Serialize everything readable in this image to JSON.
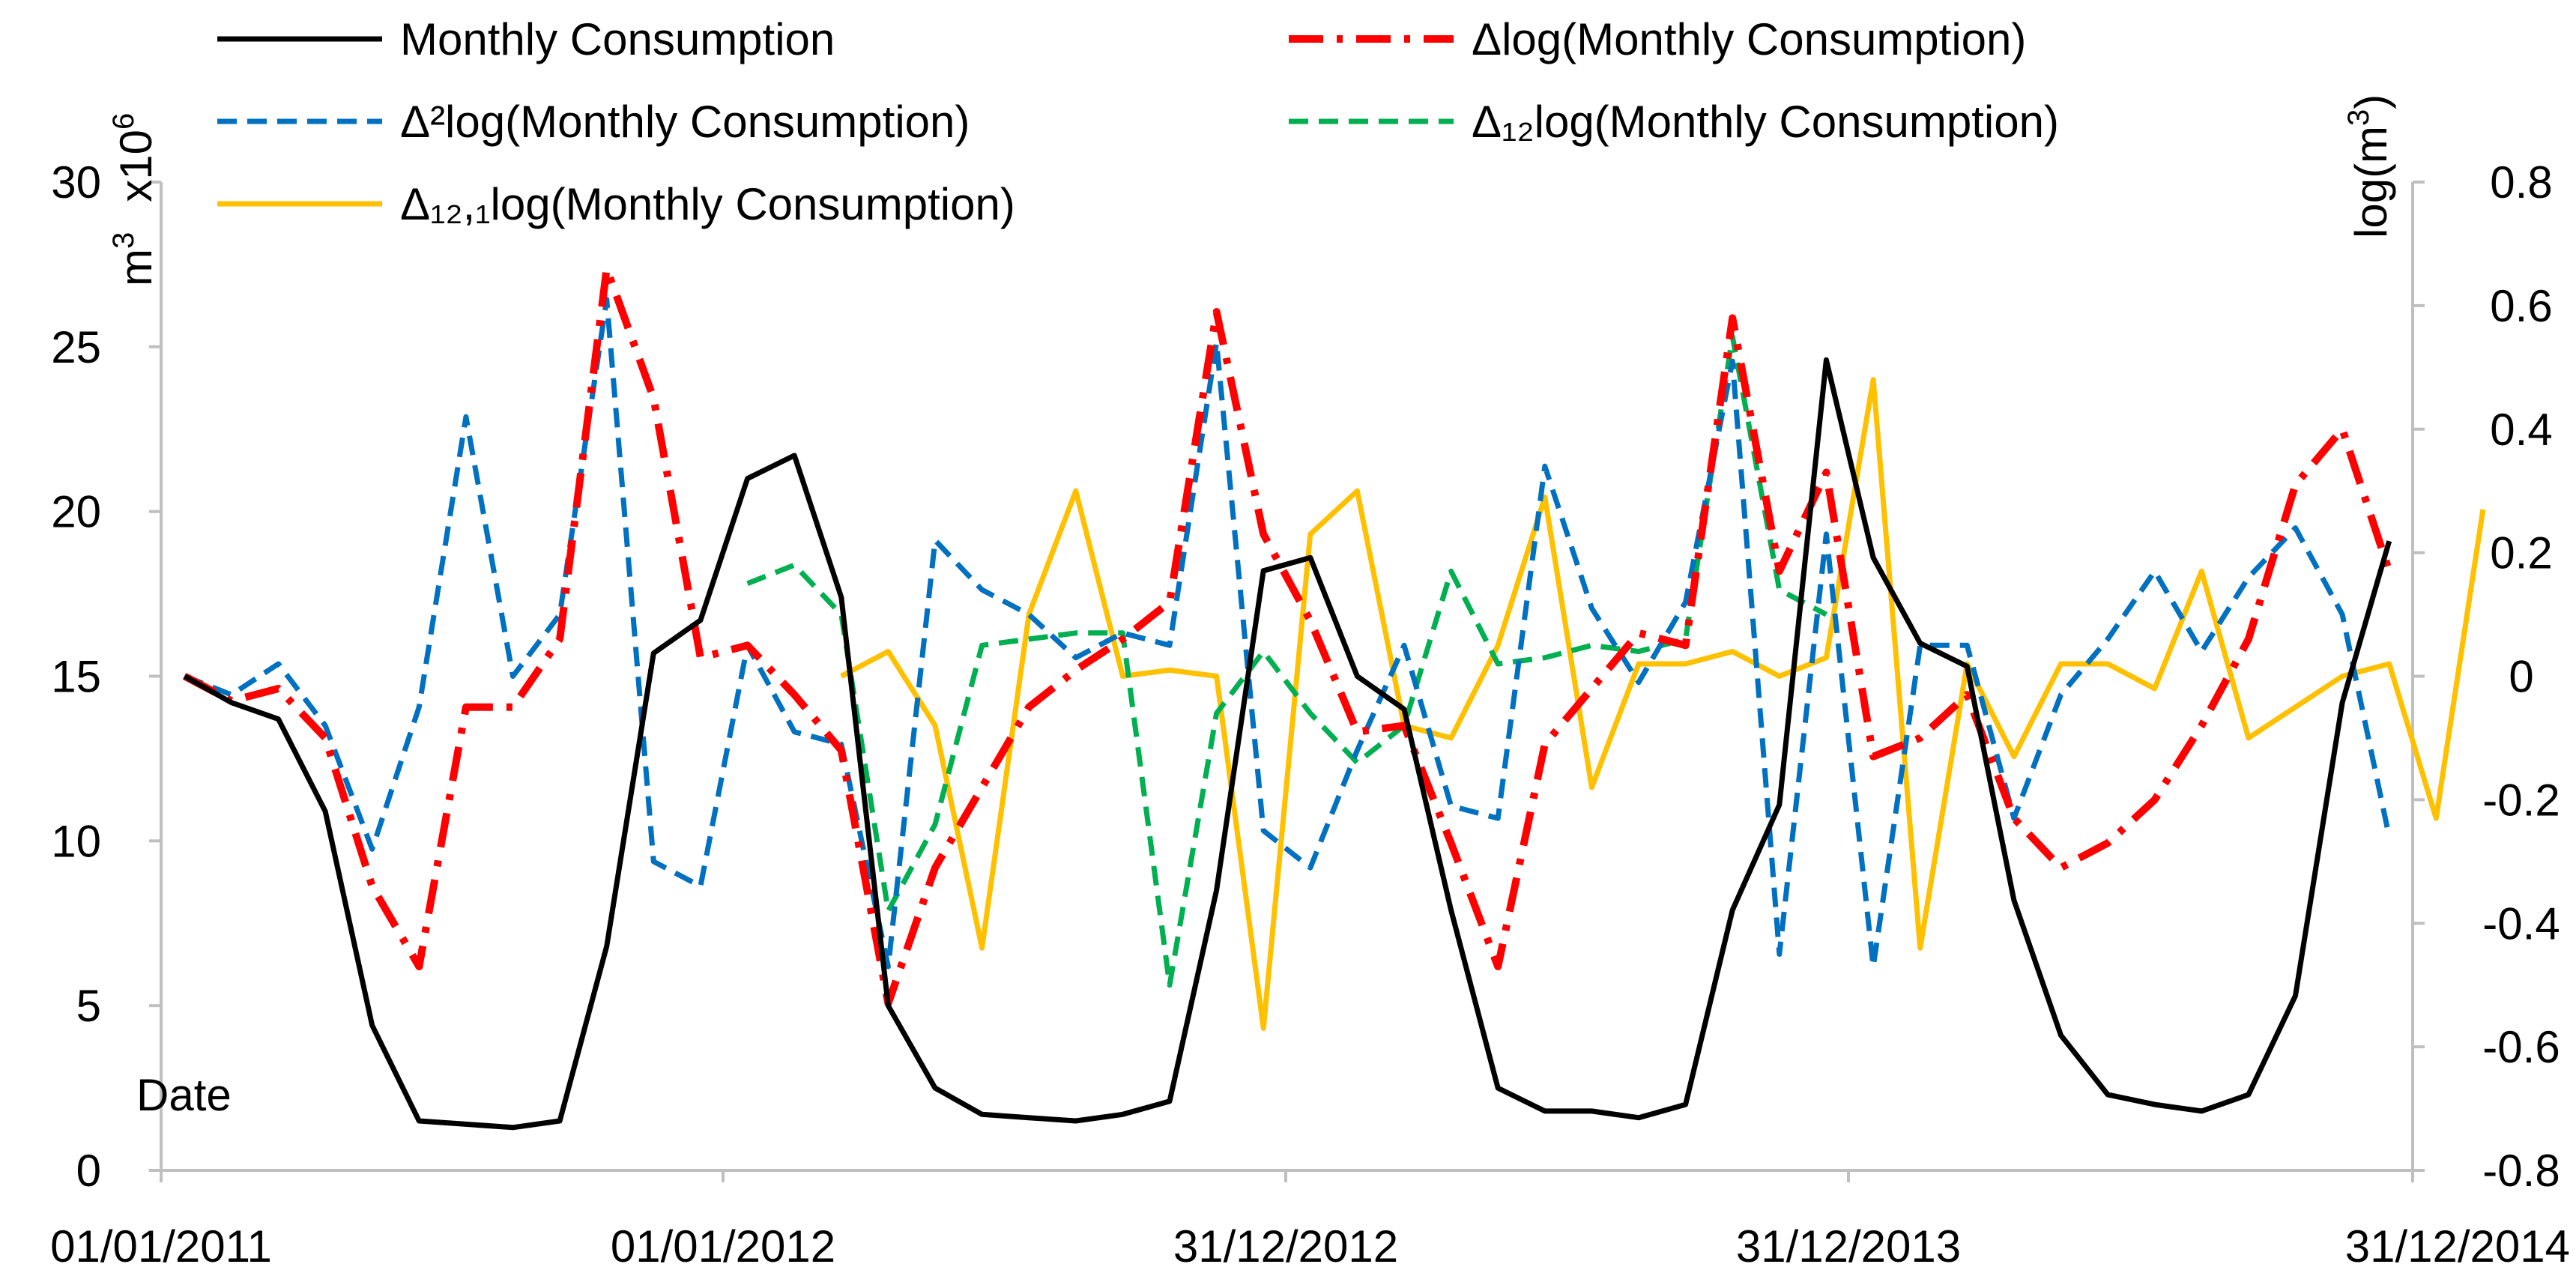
{
  "chart_data": {
    "type": "line",
    "x_tick_labels": [
      "01/01/2011",
      "01/01/2012",
      "31/12/2012",
      "31/12/2013",
      "31/12/2014"
    ],
    "x_axis_label": "Date",
    "left_axis": {
      "unit_main": "m",
      "unit_sup": "3",
      "multiplier_main": "x10",
      "multiplier_sup": "6",
      "range": [
        0,
        30
      ],
      "ticks": [
        0,
        5,
        10,
        15,
        20,
        25,
        30
      ]
    },
    "right_axis": {
      "label_main": "log(m",
      "label_sup": "3",
      "label_end": ")",
      "range": [
        -0.8,
        0.8
      ],
      "ticks": [
        "-0.8",
        "-0.6",
        "-0.4",
        "-0.2",
        "0",
        "0.2",
        "0.4",
        "0.6",
        "0.8"
      ]
    },
    "series": [
      {
        "name": "Monthly Consumption",
        "axis": "left",
        "color": "#000000",
        "style": "solid",
        "start_index": 0,
        "values": [
          15.0,
          14.2,
          13.7,
          10.9,
          4.4,
          1.5,
          1.4,
          1.3,
          1.5,
          6.8,
          15.7,
          16.7,
          21.0,
          21.7,
          17.4,
          5.0,
          2.5,
          1.7,
          1.6,
          1.5,
          1.7,
          2.1,
          8.5,
          18.2,
          18.6,
          15.0,
          14.0,
          7.9,
          2.5,
          1.8,
          1.8,
          1.6,
          2.0,
          7.9,
          11.1,
          24.6,
          18.6,
          16.0,
          15.3,
          8.2,
          4.1,
          2.3,
          2.0,
          1.8,
          2.3,
          5.3,
          14.2,
          19.1
        ]
      },
      {
        "name": "Δlog(Monthly Consumption)",
        "axis": "right",
        "color": "#ff0000",
        "style": "dashdot",
        "start_index": 0,
        "values": [
          0.0,
          -0.04,
          -0.02,
          -0.1,
          -0.34,
          -0.47,
          -0.05,
          -0.05,
          0.06,
          0.66,
          0.45,
          0.03,
          0.05,
          -0.03,
          -0.12,
          -0.53,
          -0.31,
          -0.18,
          -0.05,
          0.01,
          0.06,
          0.12,
          0.59,
          0.23,
          0.09,
          -0.09,
          -0.08,
          -0.27,
          -0.47,
          -0.11,
          -0.02,
          0.07,
          0.05,
          0.58,
          0.17,
          0.33,
          -0.13,
          -0.1,
          -0.03,
          -0.23,
          -0.31,
          -0.27,
          -0.2,
          -0.08,
          0.06,
          0.31,
          0.4,
          0.17
        ]
      },
      {
        "name": "Δ²log(Monthly Consumption)",
        "axis": "right",
        "color": "#0070c0",
        "style": "dashed",
        "start_index": 0,
        "values": [
          0.0,
          -0.03,
          0.02,
          -0.08,
          -0.28,
          -0.05,
          0.42,
          0.0,
          0.1,
          0.61,
          -0.3,
          -0.34,
          0.05,
          -0.09,
          -0.11,
          -0.47,
          0.22,
          0.14,
          0.1,
          0.03,
          0.07,
          0.05,
          0.54,
          -0.25,
          -0.31,
          -0.12,
          0.05,
          -0.21,
          -0.23,
          0.34,
          0.11,
          -0.01,
          0.12,
          0.51,
          -0.45,
          0.23,
          -0.47,
          0.05,
          0.05,
          -0.23,
          -0.03,
          0.06,
          0.17,
          0.04,
          0.16,
          0.24,
          0.1,
          -0.26
        ]
      },
      {
        "name": "Δ₁₂log(Monthly Consumption)",
        "axis": "right",
        "color": "#00b050",
        "style": "dashed",
        "start_index": 12,
        "values": [
          0.15,
          0.18,
          0.1,
          -0.38,
          -0.24,
          0.05,
          0.06,
          0.07,
          0.07,
          -0.5,
          -0.06,
          0.04,
          -0.06,
          -0.14,
          -0.08,
          0.17,
          0.02,
          0.03,
          0.05,
          0.04,
          0.06,
          0.55,
          0.14,
          0.1
        ]
      },
      {
        "name": "Δ₁₂,₁log(Monthly Consumption)",
        "axis": "right",
        "color": "#ffc000",
        "style": "solid",
        "start_index": 14,
        "values": [
          0.0,
          0.04,
          -0.08,
          -0.44,
          0.1,
          0.3,
          0.0,
          0.01,
          0.0,
          -0.57,
          0.23,
          0.3,
          -0.08,
          -0.1,
          0.05,
          0.29,
          -0.18,
          0.02,
          0.02,
          0.04,
          0.0,
          0.03,
          0.48,
          -0.44,
          0.02,
          -0.13,
          0.02,
          0.02,
          -0.02,
          0.17,
          -0.1,
          -0.05,
          0.0,
          0.02,
          -0.23,
          0.27
        ]
      }
    ],
    "legend": {
      "position": "top",
      "entries": [
        "Monthly Consumption",
        "Δlog(Monthly Consumption)",
        "Δ²log(Monthly Consumption)",
        "Δ₁₂log(Monthly Consumption)",
        "Δ₁₂,₁log(Monthly Consumption)"
      ]
    }
  }
}
